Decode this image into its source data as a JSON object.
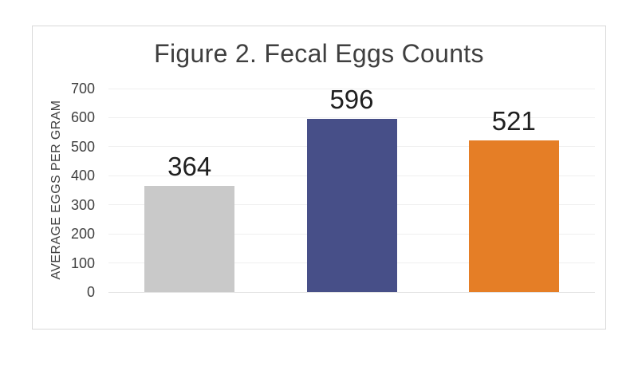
{
  "chart_data": {
    "type": "bar",
    "title": "Figure 2. Fecal Eggs Counts",
    "xlabel": "",
    "ylabel": "AVERAGE EGGS PER GRAM",
    "categories": [
      "",
      "",
      ""
    ],
    "values": [
      364,
      596,
      521
    ],
    "data_labels": [
      "364",
      "596",
      "521"
    ],
    "bar_colors": [
      "#C9C9C9",
      "#474F88",
      "#E57E26"
    ],
    "yticks": [
      0,
      100,
      200,
      300,
      400,
      500,
      600,
      700
    ],
    "ylim": [
      0,
      700
    ],
    "grid": true,
    "legend_position": "none"
  },
  "colors": {
    "background": "#FFFFFF",
    "frame_border": "#D9D9D9",
    "gridline": "#EFEFEF",
    "axis_line": "#E3E3E3",
    "title_text": "#3F3F3F",
    "tick_text": "#404040",
    "label_text": "#1F1F1F"
  }
}
